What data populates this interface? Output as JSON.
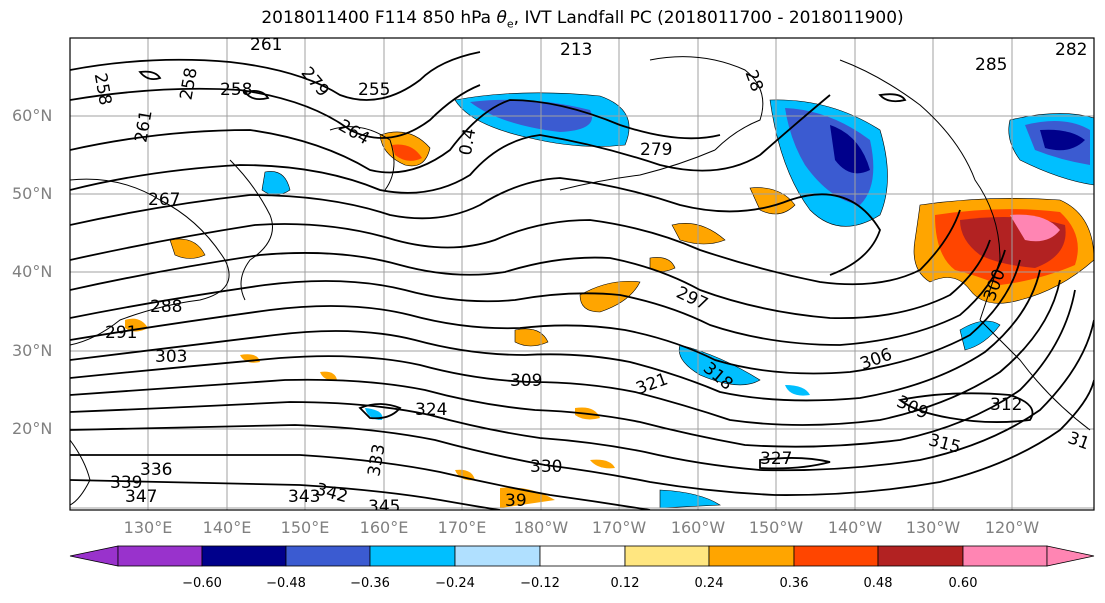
{
  "title": {
    "prefix": "2018011400 F114 850 hPa ",
    "theta_symbol": "θ",
    "theta_sub": "e",
    "suffix": ", IVT Landfall PC (2018011700 - 2018011900)"
  },
  "map": {
    "lat_labels": [
      "60°N",
      "50°N",
      "40°N",
      "30°N",
      "20°N"
    ],
    "lon_labels": [
      "130°E",
      "140°E",
      "150°E",
      "160°E",
      "170°E",
      "180°W",
      "170°W",
      "160°W",
      "150°W",
      "140°W",
      "130°W",
      "120°W"
    ],
    "contour_labels": [
      "261",
      "258",
      "258",
      "255",
      "264",
      "258",
      "261",
      "267",
      "213",
      "279",
      "285",
      "282",
      "288",
      "291",
      "303",
      "309",
      "297",
      "306",
      "312",
      "309",
      "315",
      "324",
      "333",
      "330",
      "327",
      "321",
      "318",
      "336",
      "339",
      "347",
      "343",
      "342",
      "345",
      "39",
      "31",
      "0.4",
      "28",
      "279",
      "300"
    ]
  },
  "colorbar": {
    "ticks": [
      "−0.60",
      "−0.48",
      "−0.36",
      "−0.24",
      "−0.12",
      "0.12",
      "0.24",
      "0.36",
      "0.48",
      "0.60"
    ],
    "colors": [
      "#9932cc",
      "#00008b",
      "#3b5bd1",
      "#00bfff",
      "#b0e0ff",
      "#ffffff",
      "#ffe680",
      "#ffa500",
      "#ff4500",
      "#b22222",
      "#ff85b3"
    ]
  }
}
